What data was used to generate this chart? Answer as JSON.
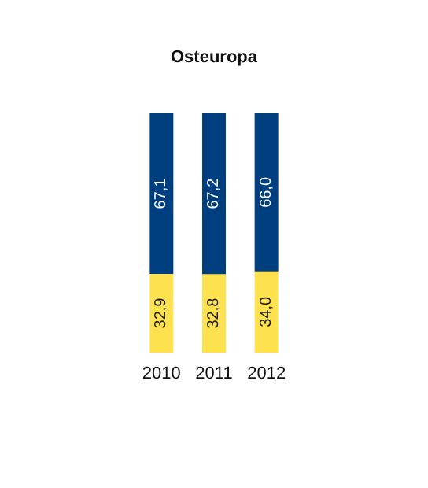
{
  "chart_data": {
    "type": "bar",
    "title": "Osteuropa",
    "categories": [
      "2010",
      "2011",
      "2012"
    ],
    "stacked": true,
    "series": [
      {
        "color": "#fde14f",
        "values": [
          32.9,
          32.8,
          34.0
        ],
        "value_labels": [
          "32,9",
          "32,8",
          "34,0"
        ]
      },
      {
        "color": "#003f7f",
        "values": [
          67.1,
          67.2,
          66.0
        ],
        "value_labels": [
          "67,1",
          "67,2",
          "66,0"
        ]
      }
    ]
  }
}
